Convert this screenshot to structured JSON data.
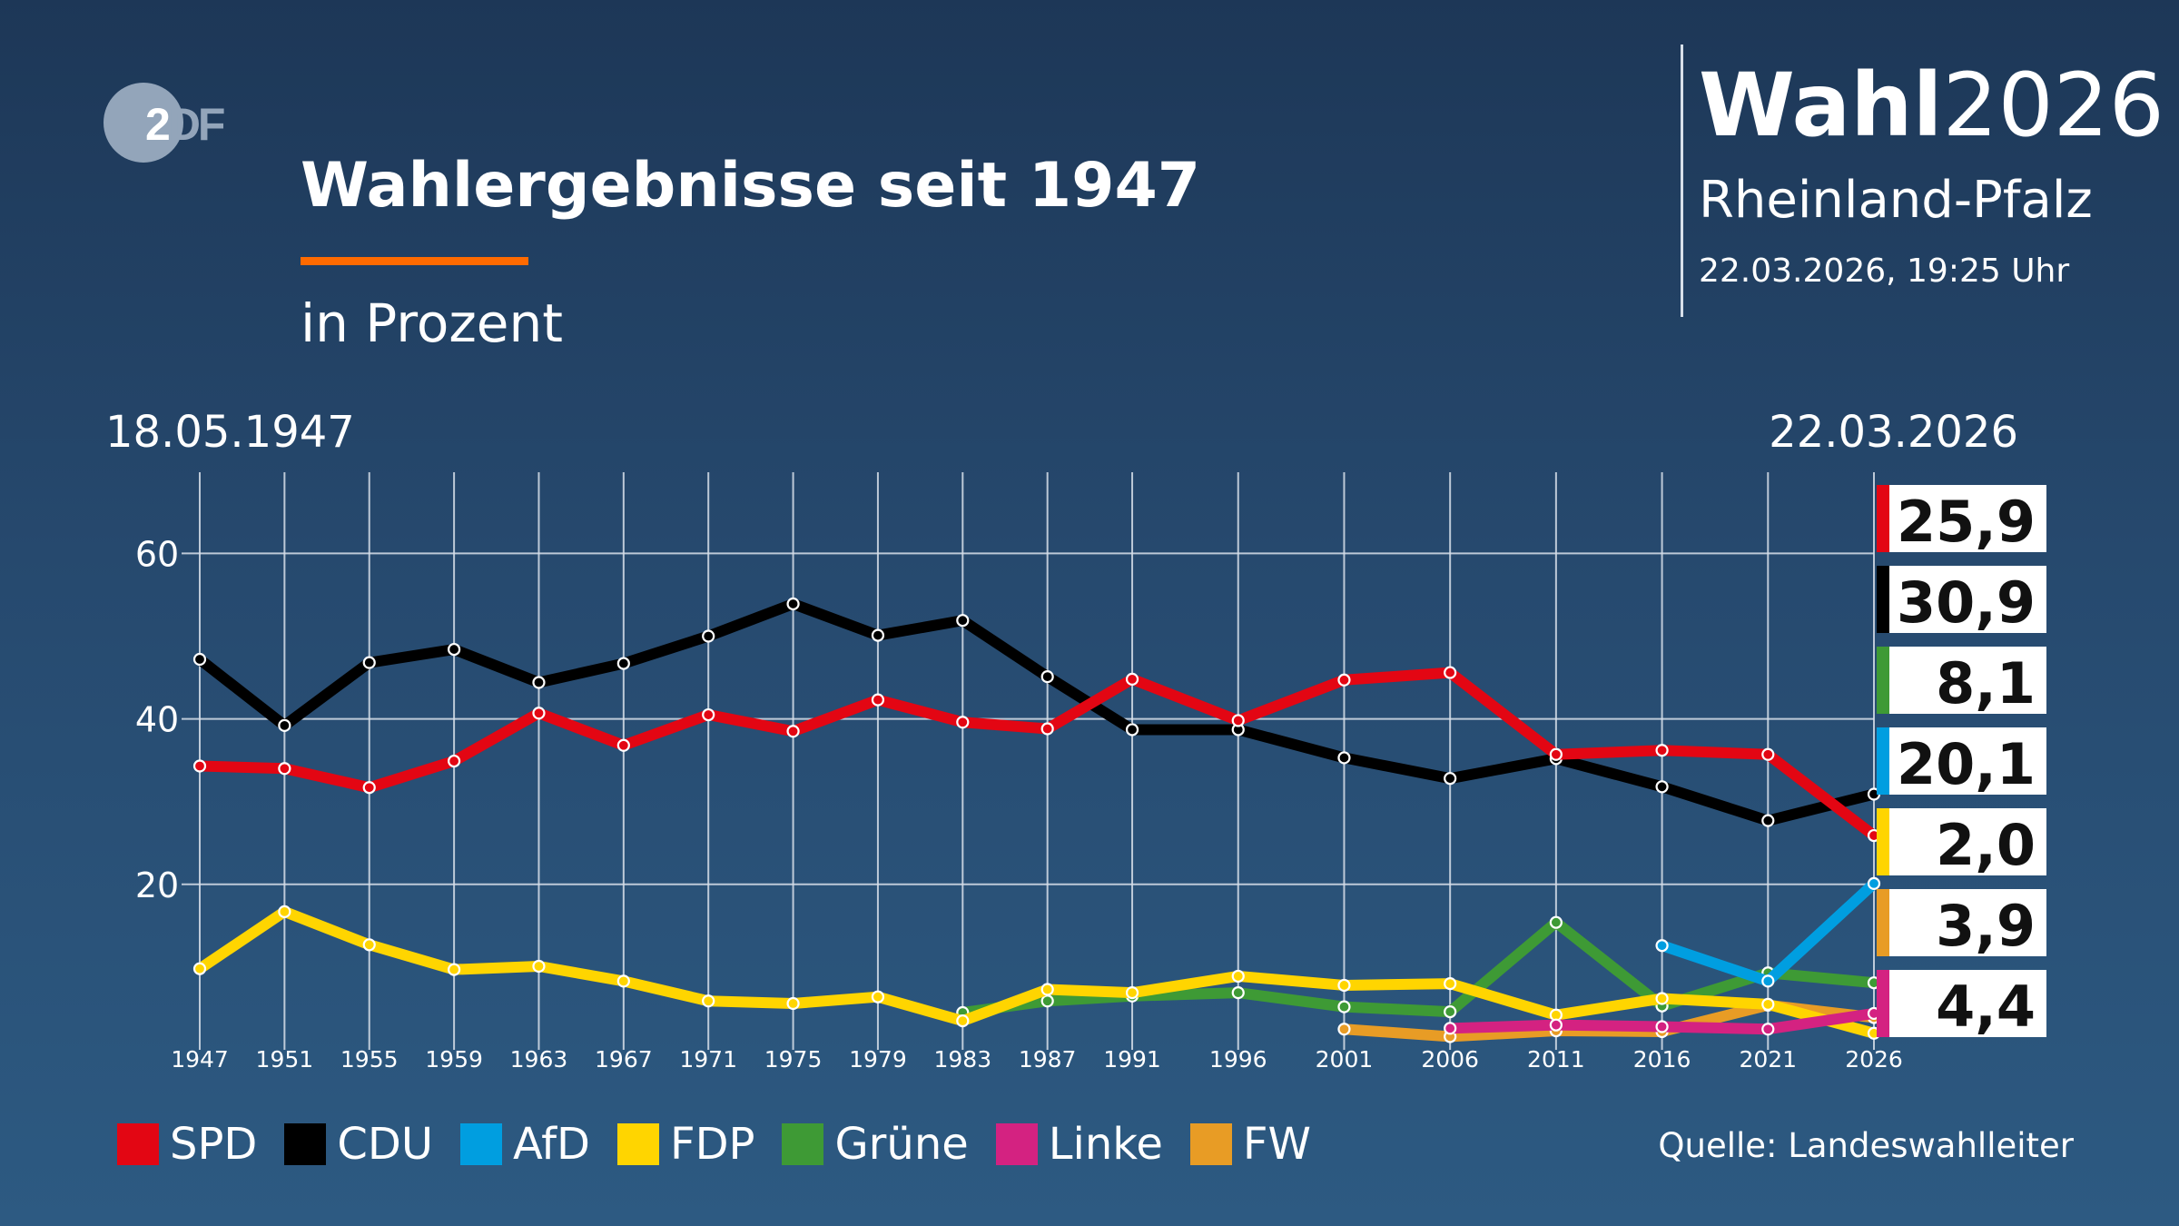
{
  "logo": {
    "text_two": "2",
    "text_df": "DF"
  },
  "header": {
    "title": "Wahlergebnisse seit 1947",
    "subtitle": "in Prozent",
    "brand_bold": "Wahl",
    "brand_year": "2026",
    "region": "Rheinland-Pfalz",
    "timestamp": "22.03.2026, 19:25 Uhr"
  },
  "source": "Quelle: Landeswahlleiter",
  "chart_data": {
    "type": "line",
    "date_start": "18.05.1947",
    "date_end": "22.03.2026",
    "x": [
      1947,
      1951,
      1955,
      1959,
      1963,
      1967,
      1971,
      1975,
      1979,
      1983,
      1987,
      1991,
      1996,
      2001,
      2006,
      2011,
      2016,
      2021,
      2026
    ],
    "x_tick_labels": [
      "1947",
      "1951",
      "1955",
      "1959",
      "1963",
      "1967",
      "1971",
      "1975",
      "1979",
      "1983",
      "1987",
      "1991",
      "1996",
      "2001",
      "2006",
      "2011",
      "2016",
      "2021",
      "2026"
    ],
    "y_ticks": [
      20,
      40,
      60
    ],
    "y_tick_labels": [
      "20",
      "40",
      "60"
    ],
    "ylim": [
      0,
      70
    ],
    "grid": true,
    "legend_placement": "bottom",
    "series": [
      {
        "name": "SPD",
        "color": "#e30613",
        "values": [
          34.3,
          34.0,
          31.7,
          34.9,
          40.7,
          36.8,
          40.5,
          38.5,
          42.3,
          39.6,
          38.8,
          44.8,
          39.8,
          44.7,
          45.6,
          35.7,
          36.2,
          35.7,
          25.9
        ]
      },
      {
        "name": "CDU",
        "color": "#000000",
        "values": [
          47.2,
          39.2,
          46.8,
          48.4,
          44.4,
          46.7,
          50.0,
          53.9,
          50.1,
          51.9,
          45.1,
          38.7,
          38.7,
          35.3,
          32.8,
          35.2,
          31.8,
          27.7,
          30.9
        ]
      },
      {
        "name": "AfD",
        "color": "#009ee0",
        "values": [
          null,
          null,
          null,
          null,
          null,
          null,
          null,
          null,
          null,
          null,
          null,
          null,
          null,
          null,
          null,
          null,
          12.6,
          8.3,
          20.1
        ]
      },
      {
        "name": "FDP",
        "color": "#ffd500",
        "values": [
          9.8,
          16.7,
          12.7,
          9.7,
          10.1,
          8.3,
          5.9,
          5.6,
          6.4,
          3.5,
          7.3,
          6.9,
          8.9,
          7.8,
          8.0,
          4.2,
          6.2,
          5.5,
          2.0
        ]
      },
      {
        "name": "Grüne",
        "color": "#3e9a35",
        "values": [
          null,
          null,
          null,
          null,
          null,
          null,
          null,
          null,
          null,
          4.5,
          5.9,
          6.5,
          6.9,
          5.2,
          4.6,
          15.4,
          5.3,
          9.3,
          8.1
        ]
      },
      {
        "name": "Linke",
        "color": "#d42281",
        "values": [
          null,
          null,
          null,
          null,
          null,
          null,
          null,
          null,
          null,
          null,
          null,
          null,
          null,
          null,
          2.6,
          3.0,
          2.8,
          2.5,
          4.4
        ]
      },
      {
        "name": "FW",
        "color": "#e89c25",
        "values": [
          null,
          null,
          null,
          null,
          null,
          null,
          null,
          null,
          null,
          null,
          null,
          null,
          null,
          2.5,
          1.6,
          2.3,
          2.2,
          5.4,
          3.9
        ]
      }
    ],
    "latest_labels": [
      {
        "party": "SPD",
        "color": "#e30613",
        "label": "25,9"
      },
      {
        "party": "CDU",
        "color": "#000000",
        "label": "30,9"
      },
      {
        "party": "Grüne",
        "color": "#3e9a35",
        "label": "8,1"
      },
      {
        "party": "AfD",
        "color": "#009ee0",
        "label": "20,1"
      },
      {
        "party": "FDP",
        "color": "#ffd500",
        "label": "2,0"
      },
      {
        "party": "FW",
        "color": "#e89c25",
        "label": "3,9"
      },
      {
        "party": "Linke",
        "color": "#d42281",
        "label": "4,4"
      }
    ]
  }
}
